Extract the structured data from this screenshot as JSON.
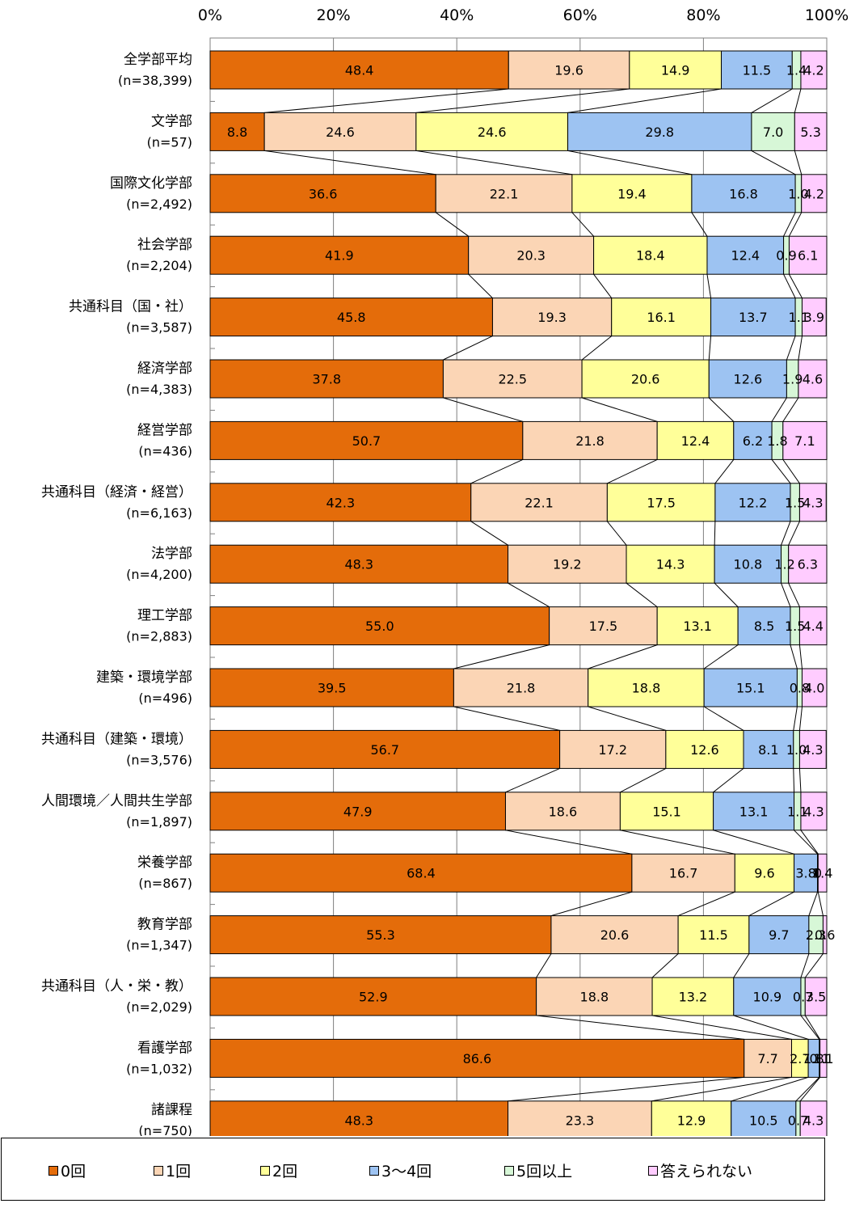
{
  "chart_data": {
    "type": "bar",
    "orientation": "horizontal",
    "stacked": true,
    "percent_scale": true,
    "xlim": [
      0,
      100
    ],
    "x_ticks": [
      "0%",
      "20%",
      "40%",
      "60%",
      "80%",
      "100%"
    ],
    "grid": true,
    "legend_position": "bottom",
    "categories": [
      {
        "name": "全学部平均",
        "n": "(n=38,399)"
      },
      {
        "name": "文学部",
        "n": "(n=57)"
      },
      {
        "name": "国際文化学部",
        "n": "(n=2,492)"
      },
      {
        "name": "社会学部",
        "n": "(n=2,204)"
      },
      {
        "name": "共通科目（国・社）",
        "n": "(n=3,587)"
      },
      {
        "name": "経済学部",
        "n": "(n=4,383)"
      },
      {
        "name": "経営学部",
        "n": "(n=436)"
      },
      {
        "name": "共通科目（経済・経営）",
        "n": "(n=6,163)"
      },
      {
        "name": "法学部",
        "n": "(n=4,200)"
      },
      {
        "name": "理工学部",
        "n": "(n=2,883)"
      },
      {
        "name": "建築・環境学部",
        "n": "(n=496)"
      },
      {
        "name": "共通科目（建築・環境）",
        "n": "(n=3,576)"
      },
      {
        "name": "人間環境／人間共生学部",
        "n": "(n=1,897)"
      },
      {
        "name": "栄養学部",
        "n": "(n=867)"
      },
      {
        "name": "教育学部",
        "n": "(n=1,347)"
      },
      {
        "name": "共通科目（人・栄・教）",
        "n": "(n=2,029)"
      },
      {
        "name": "看護学部",
        "n": "(n=1,032)"
      },
      {
        "name": "諸課程",
        "n": "(n=750)"
      }
    ],
    "series": [
      {
        "name": "0回",
        "color": "#E46C0A",
        "values": [
          48.4,
          8.8,
          36.6,
          41.9,
          45.8,
          37.8,
          50.7,
          42.3,
          48.3,
          55.0,
          39.5,
          56.7,
          47.9,
          68.4,
          55.3,
          52.9,
          86.6,
          48.3
        ],
        "labels": [
          "48.4",
          "8.8",
          "36.6",
          "41.9",
          "45.8",
          "37.8",
          "50.7",
          "42.3",
          "48.3",
          "55.0",
          "39.5",
          "56.7",
          "47.9",
          "68.4",
          "55.3",
          "52.9",
          "86.6",
          "48.3"
        ]
      },
      {
        "name": "1回",
        "color": "#FBD5B5",
        "values": [
          19.6,
          24.6,
          22.1,
          20.3,
          19.3,
          22.5,
          21.8,
          22.1,
          19.2,
          17.5,
          21.8,
          17.2,
          18.6,
          16.7,
          20.6,
          18.8,
          7.7,
          23.3
        ],
        "labels": [
          "19.6",
          "24.6",
          "22.1",
          "20.3",
          "19.3",
          "22.5",
          "21.8",
          "22.1",
          "19.2",
          "17.5",
          "21.8",
          "17.2",
          "18.6",
          "16.7",
          "20.6",
          "18.8",
          "7.7",
          "23.3"
        ]
      },
      {
        "name": "2回",
        "color": "#FFFF99",
        "values": [
          14.9,
          24.6,
          19.4,
          18.4,
          16.1,
          20.6,
          12.4,
          17.5,
          14.3,
          13.1,
          18.8,
          12.6,
          15.1,
          9.6,
          11.5,
          13.2,
          2.7,
          12.9
        ],
        "labels": [
          "14.9",
          "24.6",
          "19.4",
          "18.4",
          "16.1",
          "20.6",
          "12.4",
          "17.5",
          "14.3",
          "13.1",
          "18.8",
          "12.6",
          "15.1",
          "9.6",
          "11.5",
          "13.2",
          "2.7",
          "12.9"
        ]
      },
      {
        "name": "3～4回",
        "color": "#9DC3F2",
        "values": [
          11.5,
          29.8,
          16.8,
          12.4,
          13.7,
          12.6,
          6.2,
          12.2,
          10.8,
          8.5,
          15.1,
          8.1,
          13.1,
          3.8,
          9.7,
          10.9,
          1.8,
          10.5
        ],
        "labels": [
          "11.5",
          "29.8",
          "16.8",
          "12.4",
          "13.7",
          "12.6",
          "6.2",
          "12.2",
          "10.8",
          "8.5",
          "15.1",
          "8.1",
          "13.1",
          "3.8",
          "9.7",
          "10.9",
          "1.8",
          "10.5"
        ]
      },
      {
        "name": "5回以上",
        "color": "#D7F7D7",
        "values": [
          1.4,
          7.0,
          1.0,
          0.9,
          1.1,
          1.9,
          1.8,
          1.5,
          1.2,
          1.5,
          0.8,
          1.0,
          1.1,
          0.1,
          2.3,
          0.7,
          0.1,
          0.7
        ],
        "labels": [
          "1.4",
          "7.0",
          "1.0",
          "0.9",
          "1.1",
          "1.9",
          "1.8",
          "1.5",
          "1.2",
          "1.5",
          "0.8",
          "1.0",
          "1.1",
          "0",
          "2.3",
          "0.7",
          "0.1",
          "0.7"
        ]
      },
      {
        "name": "答えられない",
        "color": "#FFCCFF",
        "values": [
          4.2,
          5.3,
          4.2,
          6.1,
          3.9,
          4.6,
          7.1,
          4.3,
          6.3,
          4.4,
          4.0,
          4.3,
          4.3,
          1.4,
          0.6,
          3.5,
          1.1,
          4.3
        ],
        "labels": [
          "4.2",
          "5.3",
          "4.2",
          "6.1",
          "3.9",
          "4.6",
          "7.1",
          "4.3",
          "6.3",
          "4.4",
          "4.0",
          "4.3",
          "4.3",
          "1.4",
          "0.6",
          "3.5",
          "1.1",
          "4.3"
        ]
      }
    ]
  }
}
